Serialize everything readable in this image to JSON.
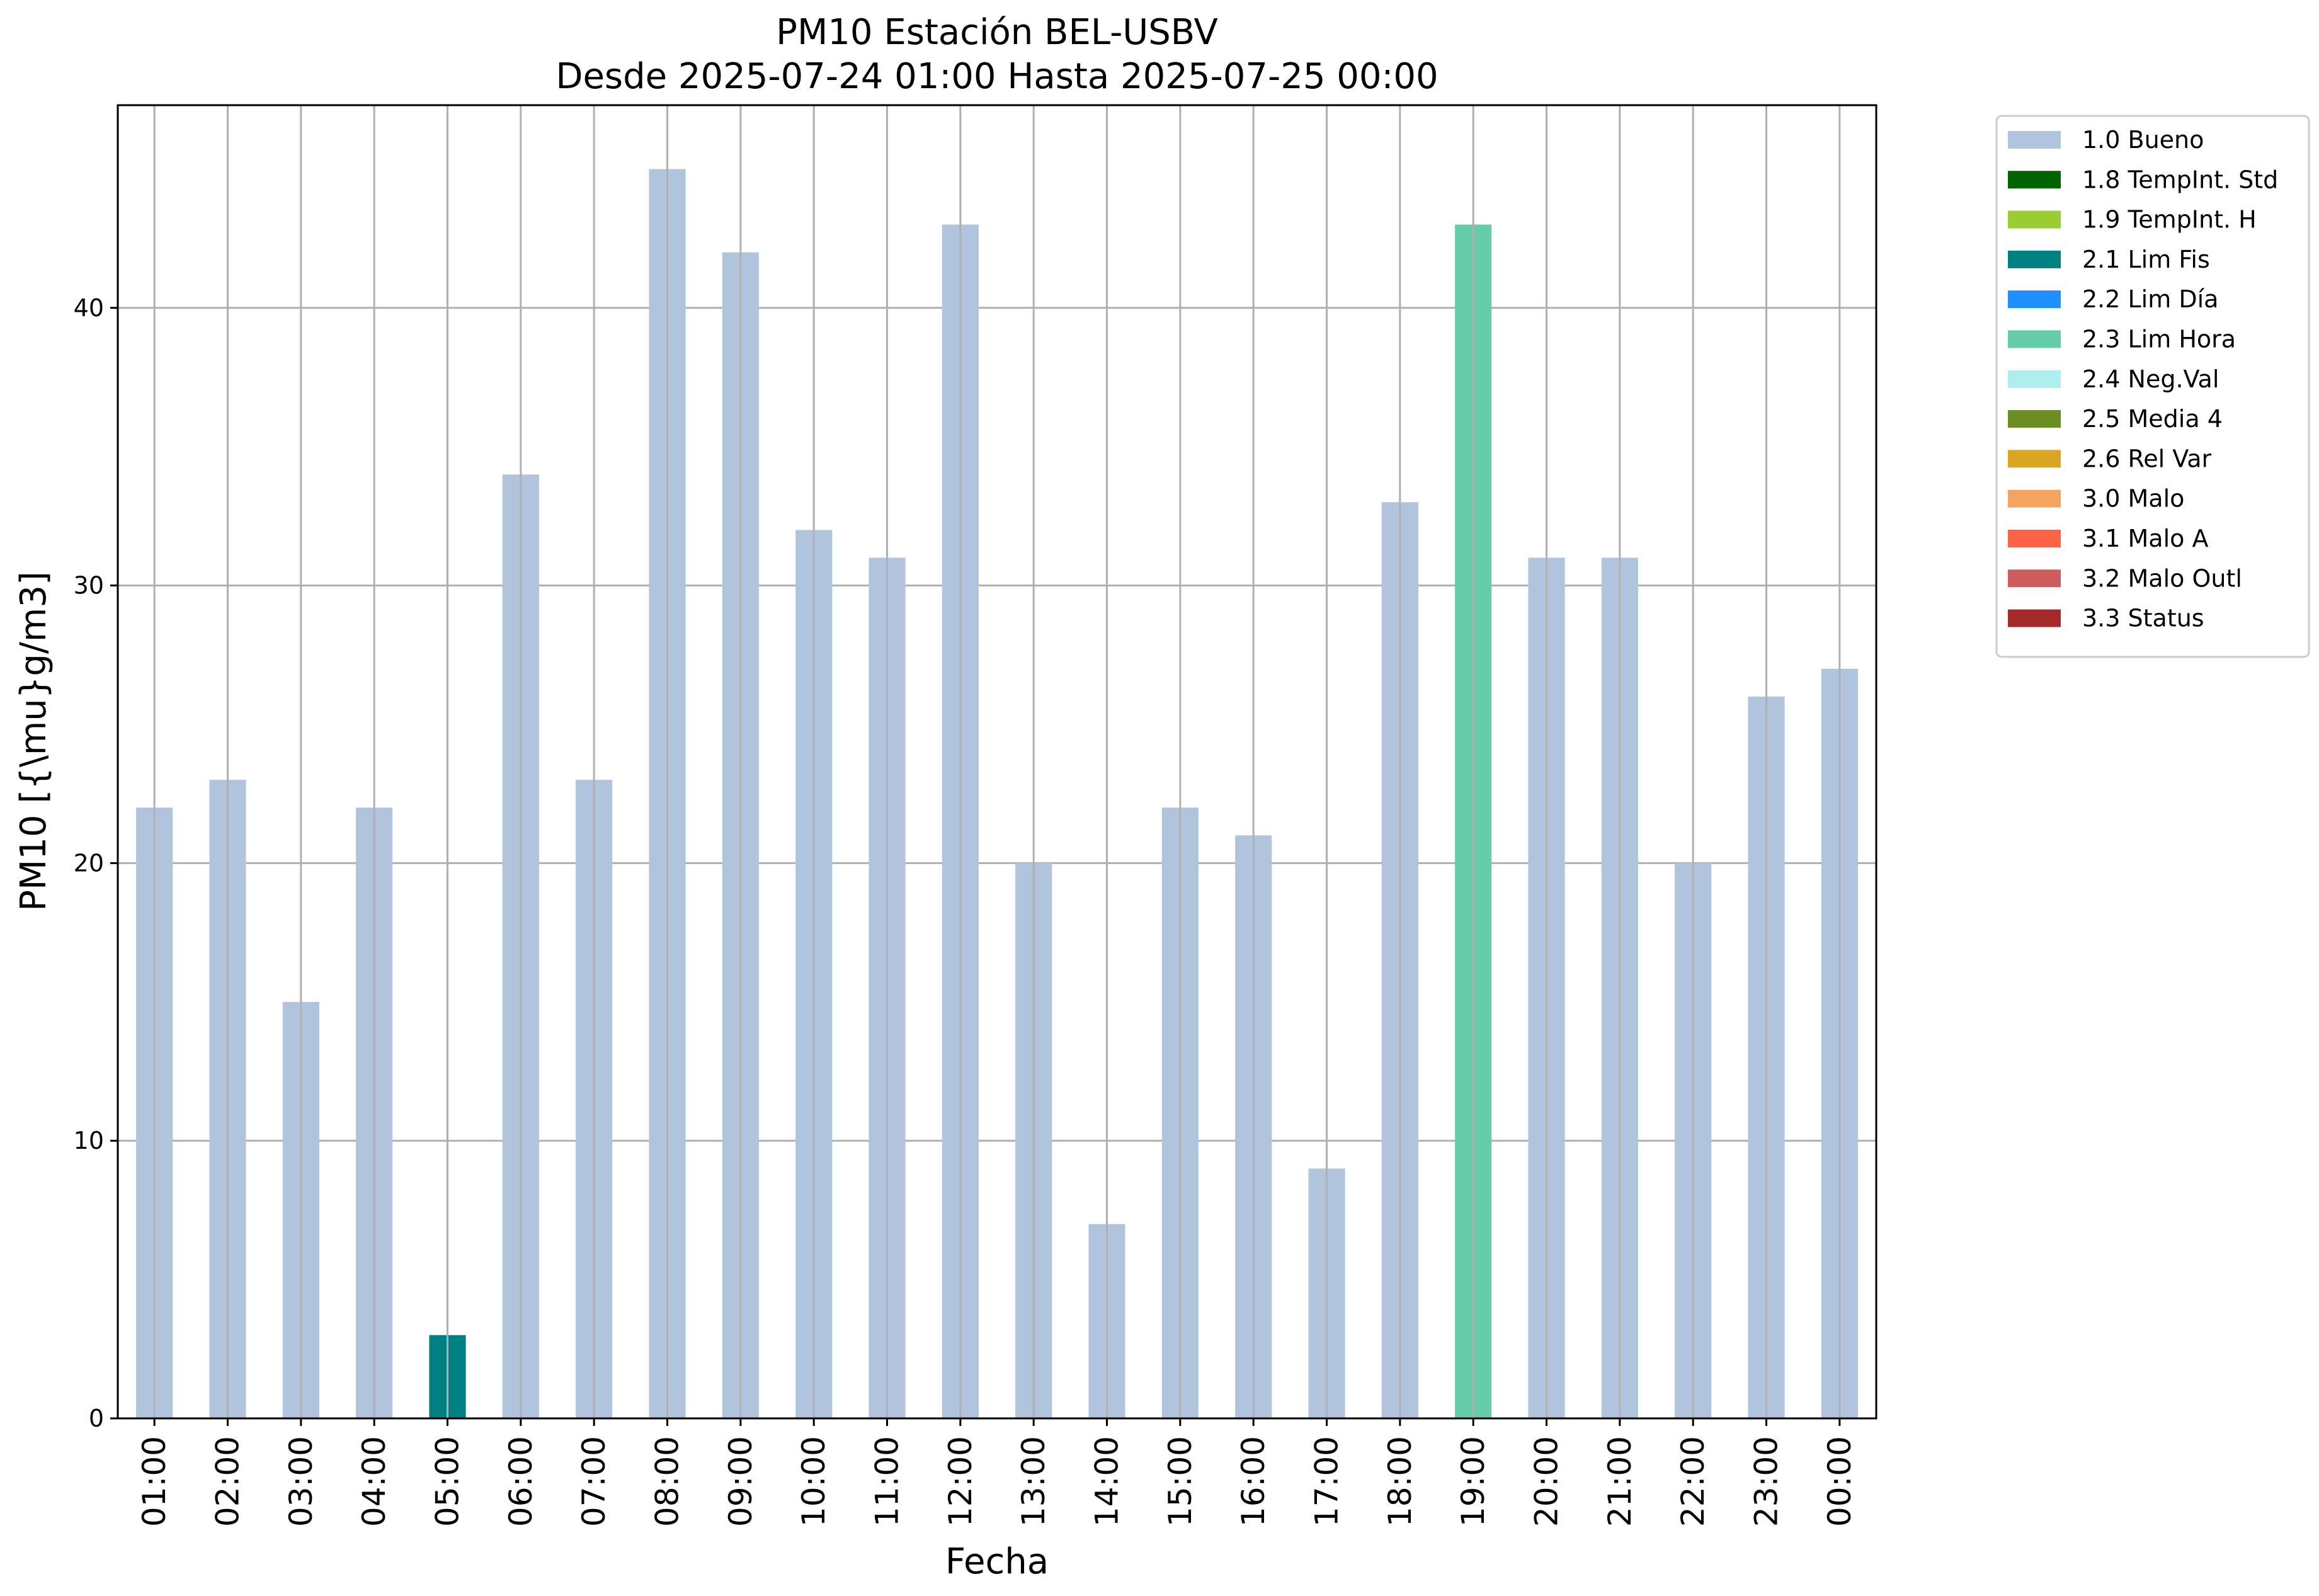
{
  "chart_data": {
    "type": "bar",
    "title": "PM10 Estación BEL-USBV",
    "subtitle": "Desde 2025-07-24 01:00 Hasta 2025-07-25 00:00",
    "xlabel": "Fecha",
    "ylabel": "PM10 [{\\mu}g/m3]",
    "ylim": [
      0,
      47.3
    ],
    "yticks": [
      0,
      10,
      20,
      30,
      40
    ],
    "grid": true,
    "legend_position": "outside-right-top",
    "categories": [
      "01:00",
      "02:00",
      "03:00",
      "04:00",
      "05:00",
      "06:00",
      "07:00",
      "08:00",
      "09:00",
      "10:00",
      "11:00",
      "12:00",
      "13:00",
      "14:00",
      "15:00",
      "16:00",
      "17:00",
      "18:00",
      "19:00",
      "20:00",
      "21:00",
      "22:00",
      "23:00",
      "00:00"
    ],
    "values": [
      22,
      23,
      15,
      22,
      3,
      34,
      23,
      45,
      42,
      32,
      31,
      43,
      20,
      7,
      22,
      21,
      9,
      33,
      43,
      31,
      31,
      20,
      26,
      27
    ],
    "flags": [
      "1.0 Bueno",
      "1.0 Bueno",
      "1.0 Bueno",
      "1.0 Bueno",
      "2.1 Lim Fis",
      "1.0 Bueno",
      "1.0 Bueno",
      "1.0 Bueno",
      "1.0 Bueno",
      "1.0 Bueno",
      "1.0 Bueno",
      "1.0 Bueno",
      "1.0 Bueno",
      "1.0 Bueno",
      "1.0 Bueno",
      "1.0 Bueno",
      "1.0 Bueno",
      "1.0 Bueno",
      "2.3 Lim Hora",
      "1.0 Bueno",
      "1.0 Bueno",
      "1.0 Bueno",
      "1.0 Bueno",
      "1.0 Bueno"
    ],
    "legend": [
      {
        "label": "1.0 Bueno",
        "color": "#b0c4de"
      },
      {
        "label": "1.8 TempInt. Std",
        "color": "#006400"
      },
      {
        "label": "1.9 TempInt. H",
        "color": "#9acd32"
      },
      {
        "label": "2.1 Lim Fis",
        "color": "#008080"
      },
      {
        "label": "2.2 Lim Día",
        "color": "#1e90ff"
      },
      {
        "label": "2.3 Lim Hora",
        "color": "#66cdaa"
      },
      {
        "label": "2.4 Neg.Val",
        "color": "#afeeee"
      },
      {
        "label": "2.5 Media 4",
        "color": "#6b8e23"
      },
      {
        "label": "2.6 Rel Var",
        "color": "#daa520"
      },
      {
        "label": "3.0 Malo",
        "color": "#f4a460"
      },
      {
        "label": "3.1 Malo A",
        "color": "#ff6347"
      },
      {
        "label": "3.2 Malo Outl",
        "color": "#cd5c5c"
      },
      {
        "label": "3.3 Status",
        "color": "#a52a2a"
      }
    ]
  }
}
